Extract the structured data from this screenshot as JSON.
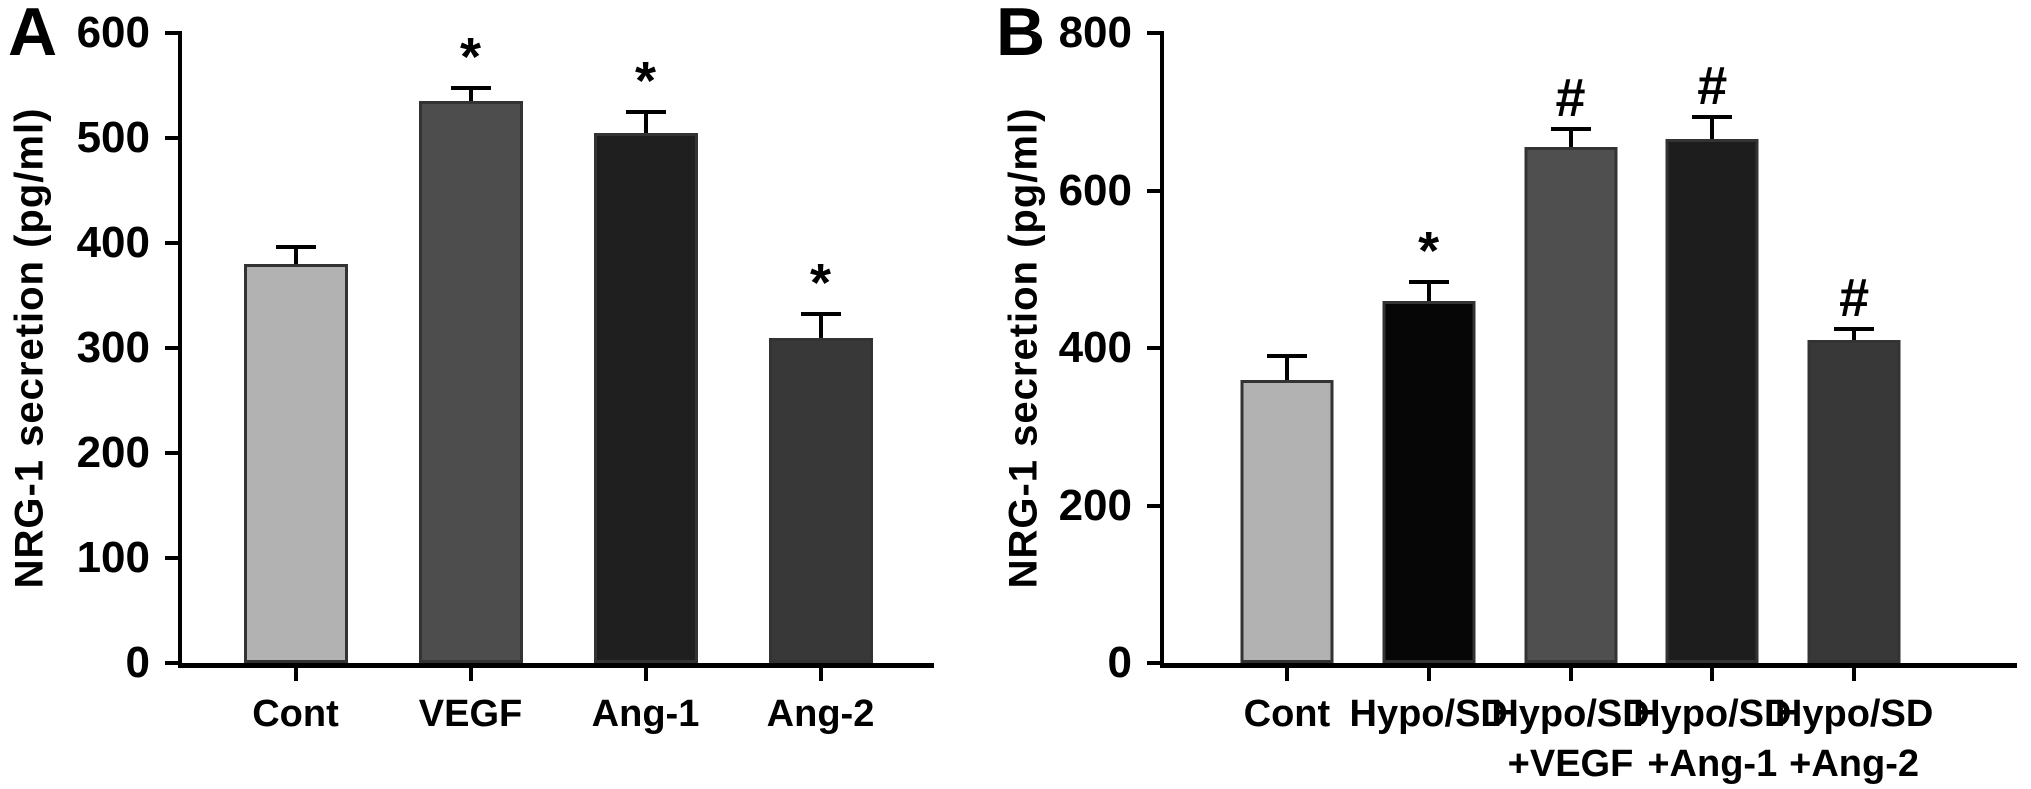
{
  "chart_data": [
    {
      "type": "bar",
      "panel_label": "A",
      "title": "",
      "xlabel": "",
      "ylabel": "NRG-1 secretion (pg/ml)",
      "ylim": [
        0,
        600
      ],
      "yticks": [
        0,
        100,
        200,
        300,
        400,
        500,
        600
      ],
      "grid": false,
      "legend": "none",
      "categories": [
        "Cont",
        "VEGF",
        "Ang-1",
        "Ang-2"
      ],
      "category_lines": [
        [
          "Cont"
        ],
        [
          "VEGF"
        ],
        [
          "Ang-1"
        ],
        [
          "Ang-2"
        ]
      ],
      "values": [
        380,
        535,
        505,
        310
      ],
      "errors_plus": [
        18,
        15,
        22,
        24
      ],
      "significance": [
        "",
        "*",
        "*",
        "*"
      ],
      "bar_colors": [
        "#b2b2b2",
        "#4d4d4d",
        "#1f1f1f",
        "#383838"
      ]
    },
    {
      "type": "bar",
      "panel_label": "B",
      "title": "",
      "xlabel": "",
      "ylabel": "NRG-1 secretion (pg/ml)",
      "ylim": [
        0,
        800
      ],
      "yticks": [
        0,
        200,
        400,
        600,
        800
      ],
      "grid": false,
      "legend": "none",
      "categories": [
        "Cont",
        "Hypo/SD",
        "Hypo/SD +VEGF",
        "Hypo/SD +Ang-1",
        "Hypo/SD +Ang-2"
      ],
      "category_lines": [
        [
          "Cont"
        ],
        [
          "Hypo/SD"
        ],
        [
          "Hypo/SD",
          "+VEGF"
        ],
        [
          "Hypo/SD",
          "+Ang-1"
        ],
        [
          "Hypo/SD",
          "+Ang-2"
        ]
      ],
      "values": [
        360,
        460,
        655,
        665,
        410
      ],
      "errors_plus": [
        33,
        26,
        26,
        31,
        17
      ],
      "significance": [
        "",
        "*",
        "#",
        "#",
        "#"
      ],
      "bar_colors": [
        "#b2b2b2",
        "#060606",
        "#4f4f4f",
        "#1d1d1d",
        "#383838"
      ]
    }
  ]
}
